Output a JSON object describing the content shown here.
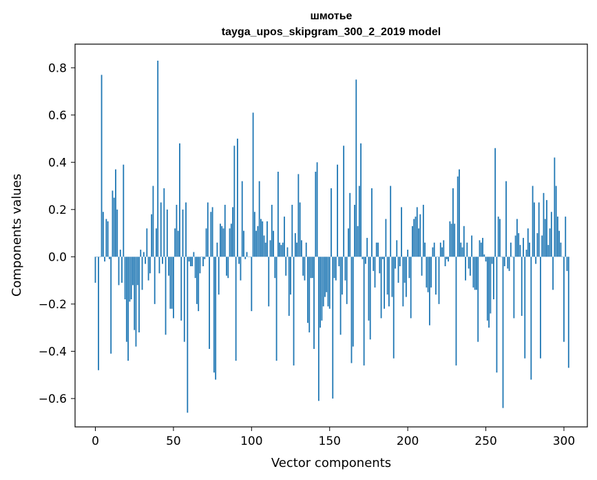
{
  "chart_data": {
    "type": "bar",
    "title": "шмотье",
    "subtitle": "tayga_upos_skipgram_300_2_2019 model",
    "xlabel": "Vector components",
    "ylabel": "Components values",
    "xlim": [
      -13,
      315
    ],
    "ylim": [
      -0.72,
      0.9
    ],
    "xticks": [
      0,
      50,
      100,
      150,
      200,
      250,
      300
    ],
    "yticks": [
      -0.6,
      -0.4,
      -0.2,
      0.0,
      0.2,
      0.4,
      0.6,
      0.8
    ],
    "ytick_labels": [
      "−0.6",
      "−0.4",
      "−0.2",
      "0.0",
      "0.2",
      "0.4",
      "0.6",
      "0.8"
    ],
    "xtick_labels": [
      "0",
      "50",
      "100",
      "150",
      "200",
      "250",
      "300"
    ],
    "bar_color": "#1f77b4",
    "grid": false,
    "values": [
      -0.11,
      0.0,
      -0.48,
      0.0,
      0.77,
      0.19,
      -0.02,
      0.16,
      0.15,
      -0.01,
      -0.41,
      0.28,
      0.25,
      0.37,
      0.2,
      -0.12,
      0.03,
      -0.11,
      0.39,
      -0.18,
      -0.36,
      -0.44,
      -0.19,
      -0.18,
      -0.12,
      -0.31,
      -0.38,
      -0.12,
      -0.32,
      0.03,
      -0.14,
      0.02,
      -0.03,
      0.12,
      -0.1,
      -0.07,
      0.18,
      0.3,
      -0.2,
      0.12,
      0.83,
      -0.07,
      0.23,
      -0.03,
      0.29,
      -0.33,
      0.2,
      -0.08,
      -0.22,
      -0.22,
      -0.26,
      0.12,
      0.22,
      0.11,
      0.48,
      -0.27,
      0.2,
      -0.36,
      0.23,
      -0.66,
      -0.02,
      -0.04,
      -0.04,
      0.02,
      -0.09,
      -0.2,
      -0.23,
      -0.07,
      0.0,
      -0.04,
      -0.01,
      0.12,
      0.23,
      -0.39,
      0.19,
      0.21,
      -0.49,
      -0.52,
      0.06,
      -0.16,
      0.14,
      0.13,
      0.12,
      0.22,
      -0.08,
      -0.09,
      0.12,
      0.14,
      0.21,
      0.47,
      -0.44,
      0.5,
      -0.03,
      -0.1,
      0.32,
      0.11,
      -0.01,
      0.02,
      0.0,
      0.0,
      -0.23,
      0.61,
      0.19,
      0.11,
      0.13,
      0.32,
      0.16,
      0.15,
      0.09,
      0.06,
      0.15,
      -0.21,
      0.07,
      0.22,
      0.11,
      -0.09,
      -0.44,
      0.36,
      0.06,
      0.05,
      0.06,
      0.17,
      -0.08,
      0.04,
      -0.25,
      -0.16,
      0.22,
      -0.46,
      0.1,
      0.06,
      0.35,
      0.23,
      0.07,
      -0.08,
      -0.1,
      0.06,
      -0.28,
      -0.32,
      -0.09,
      -0.09,
      -0.39,
      0.36,
      0.4,
      -0.61,
      -0.3,
      -0.27,
      -0.21,
      -0.17,
      -0.15,
      -0.21,
      -0.22,
      0.29,
      -0.6,
      -0.09,
      -0.1,
      0.39,
      -0.04,
      -0.33,
      -0.16,
      0.47,
      -0.1,
      -0.2,
      0.12,
      0.27,
      -0.45,
      -0.38,
      0.22,
      0.75,
      0.13,
      0.3,
      0.48,
      -0.01,
      -0.46,
      -0.03,
      0.08,
      -0.27,
      -0.35,
      0.29,
      -0.06,
      -0.13,
      0.06,
      0.06,
      -0.07,
      -0.26,
      -0.01,
      -0.22,
      0.16,
      -0.16,
      -0.21,
      0.3,
      -0.17,
      -0.43,
      -0.05,
      0.07,
      -0.11,
      -0.04,
      0.21,
      -0.21,
      -0.11,
      -0.17,
      0.03,
      -0.09,
      -0.26,
      0.13,
      0.16,
      0.17,
      0.21,
      0.12,
      0.18,
      -0.08,
      0.22,
      0.06,
      -0.13,
      -0.15,
      -0.29,
      -0.13,
      0.04,
      0.06,
      -0.16,
      0.0,
      -0.2,
      0.06,
      0.04,
      0.07,
      -0.04,
      -0.01,
      -0.02,
      0.15,
      0.14,
      0.29,
      0.14,
      -0.46,
      0.34,
      0.37,
      0.06,
      0.04,
      0.13,
      -0.1,
      0.06,
      -0.05,
      -0.08,
      0.09,
      -0.13,
      -0.14,
      -0.14,
      -0.36,
      0.07,
      0.06,
      0.08,
      0.01,
      -0.02,
      -0.27,
      -0.3,
      -0.24,
      -0.03,
      -0.18,
      0.46,
      -0.49,
      0.17,
      0.16,
      0.0,
      -0.64,
      -0.04,
      0.32,
      -0.05,
      -0.06,
      0.06,
      0.0,
      -0.26,
      0.09,
      0.16,
      0.1,
      0.05,
      -0.25,
      0.08,
      -0.43,
      0.03,
      0.12,
      0.06,
      -0.52,
      0.3,
      0.23,
      -0.03,
      0.1,
      0.23,
      -0.43,
      0.09,
      0.27,
      0.16,
      0.24,
      0.05,
      0.12,
      0.19,
      -0.14,
      0.42,
      0.3,
      0.17,
      0.11,
      0.06,
      0.0,
      -0.36,
      0.17,
      -0.06,
      -0.47
    ]
  }
}
